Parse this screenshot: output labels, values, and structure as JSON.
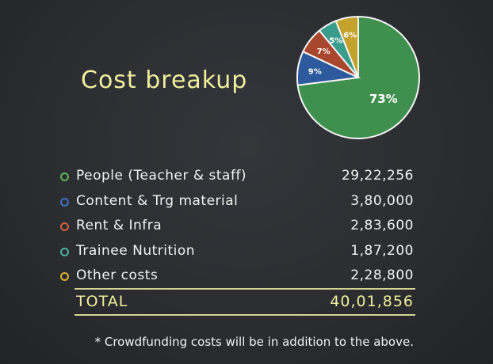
{
  "title": "Cost breakup",
  "chart_data": {
    "type": "pie",
    "title": "",
    "slices": [
      {
        "label": "73%",
        "value": 73,
        "color": "#3f8f4e"
      },
      {
        "label": "9%",
        "value": 9,
        "color": "#2c5a9c"
      },
      {
        "label": "7%",
        "value": 7,
        "color": "#a8472e"
      },
      {
        "label": "5%",
        "value": 5,
        "color": "#3a9c8a"
      },
      {
        "label": "6%",
        "value": 6,
        "color": "#c3a22c"
      }
    ],
    "start": "top",
    "direction": "clockwise"
  },
  "items": [
    {
      "label": "People (Teacher & staff)",
      "value": "29,22,256",
      "color": "#5fb35b"
    },
    {
      "label": "Content & Trg material",
      "value": "3,80,000",
      "color": "#3f73c4"
    },
    {
      "label": "Rent & Infra",
      "value": "2,83,600",
      "color": "#d0603a"
    },
    {
      "label": "Trainee Nutrition",
      "value": "1,87,200",
      "color": "#48b3a0"
    },
    {
      "label": "Other costs",
      "value": "2,28,800",
      "color": "#d8b22e"
    }
  ],
  "total": {
    "label": "TOTAL",
    "value": "40,01,856"
  },
  "note": "* Crowdfunding costs will be in addition to the above."
}
